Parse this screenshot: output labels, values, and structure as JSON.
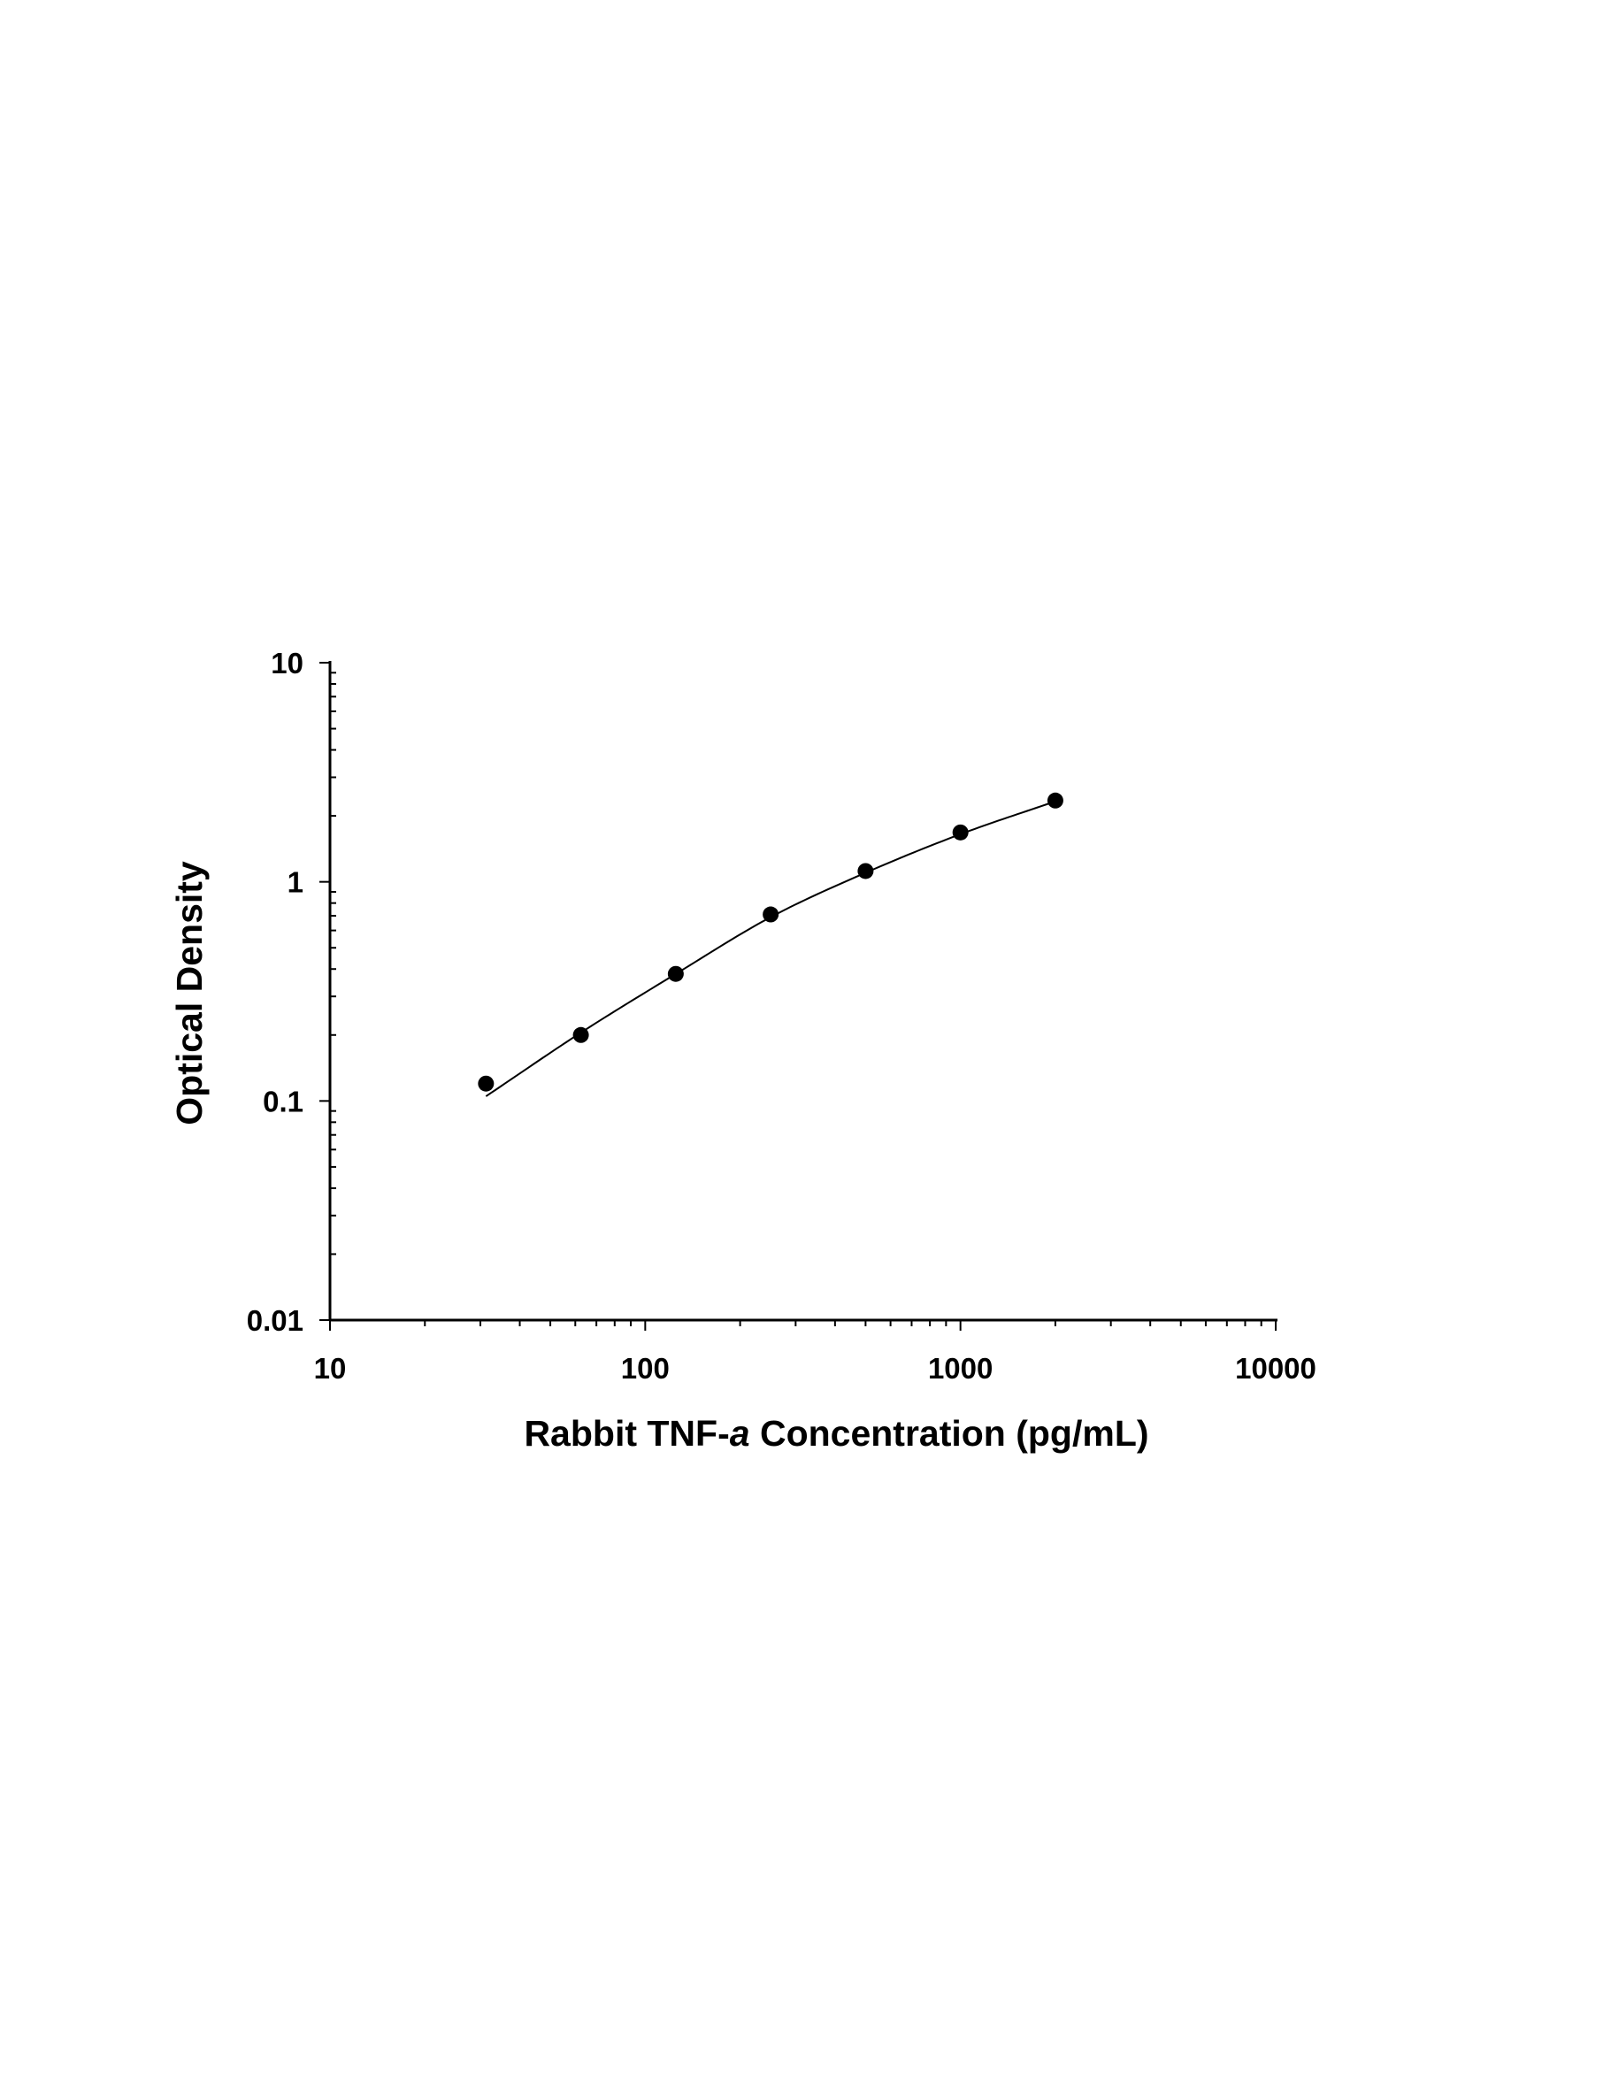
{
  "chart_data": {
    "type": "scatter",
    "title": "",
    "xlabel": {
      "prefix": "Rabbit TNF-",
      "italic": "a",
      "suffix": " Concentration (pg/mL)"
    },
    "ylabel": "Optical Density",
    "xscale": "log",
    "yscale": "log",
    "xlim": [
      10,
      10000
    ],
    "ylim": [
      0.01,
      10
    ],
    "x_ticks": [
      "10",
      "100",
      "1000",
      "10000"
    ],
    "y_ticks": [
      "0.01",
      "0.1",
      "1",
      "10"
    ],
    "grid": false,
    "legend": "none",
    "series": [
      {
        "marker": "circle",
        "color": "#000000",
        "x": [
          31.25,
          62.5,
          125,
          250,
          500,
          1000,
          2000
        ],
        "y": [
          0.12,
          0.2,
          0.38,
          0.71,
          1.12,
          1.68,
          2.35
        ]
      }
    ],
    "fit": {
      "type": "curve",
      "color": "#000000",
      "x": [
        31.25,
        62.5,
        125,
        250,
        500,
        1000,
        2000
      ],
      "y": [
        0.105,
        0.205,
        0.38,
        0.69,
        1.1,
        1.65,
        2.33
      ]
    }
  }
}
